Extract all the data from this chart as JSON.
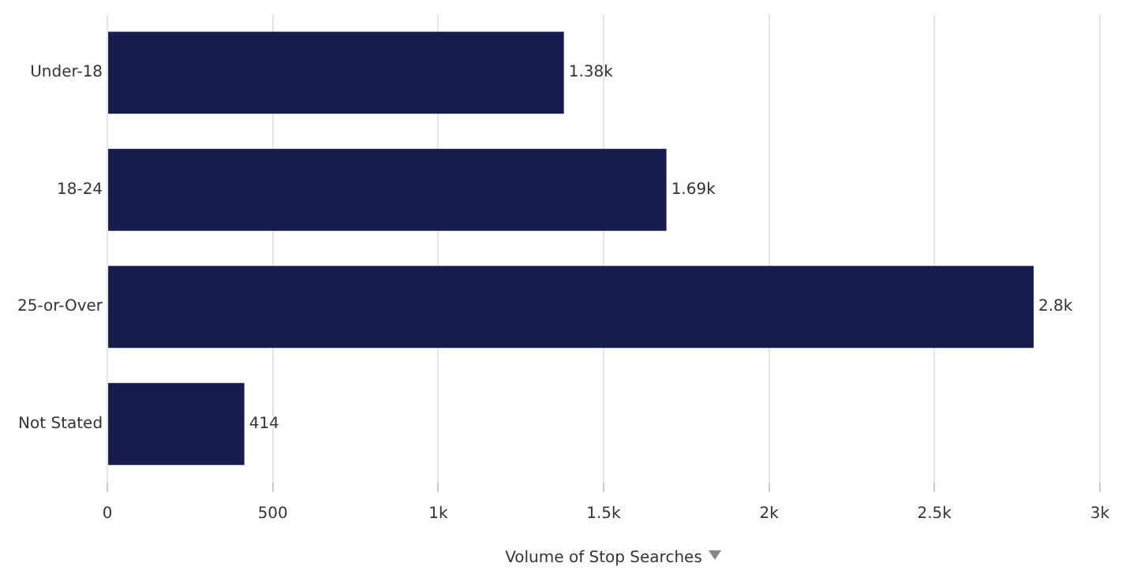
{
  "chart_data": {
    "type": "bar",
    "orientation": "horizontal",
    "xlabel": "Volume of Stop Searches",
    "categories": [
      "Under-18",
      "18-24",
      "25-or-Over",
      "Not Stated"
    ],
    "values": [
      1380,
      1690,
      2800,
      414
    ],
    "value_labels": [
      "1.38k",
      "1.69k",
      "2.8k",
      "414"
    ],
    "color": "#161c4e",
    "xlim": [
      0,
      3000
    ],
    "xticks": [
      0,
      500,
      {
        "value": 1000,
        "label": "1k"
      },
      {
        "value": 1500,
        "label": "1.5k"
      },
      {
        "value": 2000,
        "label": "2k"
      },
      {
        "value": 2500,
        "label": "2.5k"
      },
      {
        "value": 3000,
        "label": "3k"
      }
    ],
    "grid": "x",
    "legend": false
  }
}
